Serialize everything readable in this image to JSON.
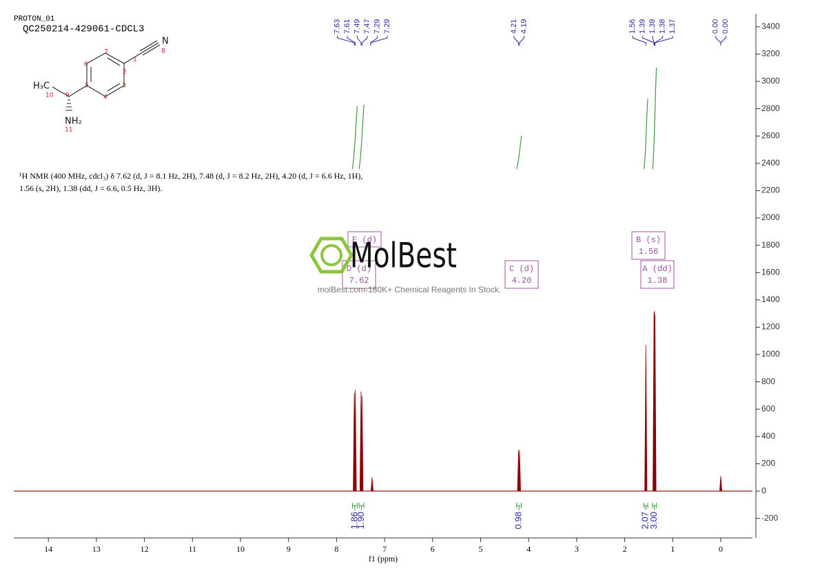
{
  "chart_data": {
    "type": "spectrum",
    "run_name": "PROTON_01",
    "title": "QC250214-429061-CDCL3",
    "description": [
      "¹H NMR (400 MHz, cdcl₃) δ 7.62 (d, J = 8.1 Hz, 2H), 7.48 (d, J = 8.2 Hz, 2H), 4.20 (d, J = 6.6 Hz, 1H),",
      "1.56 (s, 2H), 1.38 (dd, J = 6.6, 0.5 Hz, 3H)."
    ],
    "structure": {
      "atoms": [
        "N",
        "H₃C",
        "NH₂"
      ],
      "numbers": [
        "1",
        "2",
        "3",
        "4",
        "5",
        "6",
        "7",
        "8",
        "9",
        "10",
        "11"
      ]
    },
    "x_label": "f1 (ppm)",
    "xlim": [
      14.72,
      -0.66
    ],
    "xticks": [
      14,
      13,
      12,
      11,
      10,
      9,
      8,
      7,
      6,
      5,
      4,
      3,
      2,
      1,
      0
    ],
    "ylim": [
      -343,
      3495
    ],
    "yticks": [
      -200,
      0,
      200,
      400,
      600,
      800,
      1000,
      1200,
      1400,
      1600,
      1800,
      2000,
      2200,
      2400,
      2600,
      2800,
      3000,
      3200,
      3400
    ],
    "color": "#8b0000",
    "peaks": {
      "x": [
        7.63,
        7.61,
        7.49,
        7.47,
        7.26,
        4.21,
        4.19,
        1.56,
        1.39,
        1.38,
        1.37,
        0.0
      ],
      "values": [
        720,
        740,
        730,
        700,
        100,
        300,
        300,
        1070,
        1310,
        1320,
        1290,
        110
      ]
    },
    "peak_labels": [
      7.63,
      7.61,
      7.49,
      7.47,
      7.29,
      7.29,
      4.21,
      4.19,
      1.56,
      1.39,
      1.39,
      1.38,
      1.37,
      {
        "value": 0,
        "label": "0.00"
      },
      {
        "value": 0,
        "label": "0.00"
      }
    ],
    "integrals": {
      "ranges": [
        [
          7.67,
          7.57
        ],
        [
          7.53,
          7.43
        ],
        [
          4.25,
          4.15
        ],
        [
          1.6,
          1.52
        ],
        [
          1.42,
          1.34
        ]
      ],
      "values": [
        1.86,
        1.9,
        0.98,
        2.07,
        3
      ],
      "value_labels": [
        "1.86",
        "1.90",
        "0.98",
        "2.07",
        "3.00"
      ]
    },
    "multiplets": {
      "names": [
        "A (dd)",
        "B (s)",
        "C (d)",
        "D (d)",
        "E (d)"
      ],
      "shifts": [
        "1.38",
        "1.56",
        "4.20",
        "7.62",
        null
      ]
    },
    "watermark": {
      "logo": "MolBest",
      "text": "molBest.com-180K+ Chemical Reagents In Stock."
    }
  }
}
